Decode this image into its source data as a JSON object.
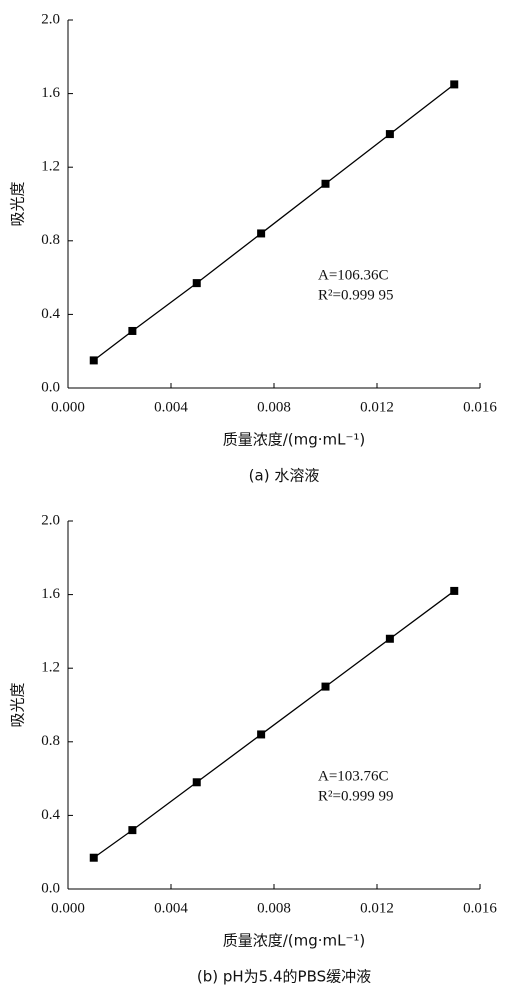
{
  "chart_data": [
    {
      "type": "scatter",
      "caption": "(a) 水溶液",
      "x_label": "质量浓度/(mg·mL⁻¹)",
      "y_label": "吸光度",
      "annotations": [
        "A=106.36C",
        "R²=0.999 95"
      ],
      "x": [
        0.001,
        0.0025,
        0.005,
        0.0075,
        0.01,
        0.0125,
        0.015
      ],
      "series": [
        {
          "color": "#000000",
          "values": [
            0.15,
            0.31,
            0.57,
            0.84,
            1.11,
            1.38,
            1.65
          ]
        }
      ],
      "xlim": [
        0,
        0.016
      ],
      "ylim": [
        0,
        2.0
      ],
      "xticks": [
        {
          "value": 0,
          "label": "0.000"
        },
        {
          "value": 0.004,
          "label": "0.004"
        },
        {
          "value": 0.008,
          "label": "0.008"
        },
        {
          "value": 0.012,
          "label": "0.012"
        },
        {
          "value": 0.016,
          "label": "0.016"
        }
      ],
      "yticks": [
        {
          "value": 0,
          "label": "0.0"
        },
        {
          "value": 0.4,
          "label": "0.4"
        },
        {
          "value": 0.8,
          "label": "0.8"
        },
        {
          "value": 1.2,
          "label": "1.2"
        },
        {
          "value": 1.6,
          "label": "1.6"
        },
        {
          "value": 2.0,
          "label": "2.0"
        }
      ]
    },
    {
      "type": "scatter",
      "caption": "(b) pH为5.4的PBS缓冲液",
      "x_label": "质量浓度/(mg·mL⁻¹)",
      "y_label": "吸光度",
      "annotations": [
        "A=103.76C",
        "R²=0.999 99"
      ],
      "x": [
        0.001,
        0.0025,
        0.005,
        0.0075,
        0.01,
        0.0125,
        0.015
      ],
      "series": [
        {
          "color": "#000000",
          "values": [
            0.17,
            0.32,
            0.58,
            0.84,
            1.1,
            1.36,
            1.62
          ]
        }
      ],
      "xlim": [
        0,
        0.016
      ],
      "ylim": [
        0,
        2.0
      ],
      "xticks": [
        {
          "value": 0,
          "label": "0.000"
        },
        {
          "value": 0.004,
          "label": "0.004"
        },
        {
          "value": 0.008,
          "label": "0.008"
        },
        {
          "value": 0.012,
          "label": "0.012"
        },
        {
          "value": 0.016,
          "label": "0.016"
        }
      ],
      "yticks": [
        {
          "value": 0,
          "label": "0.0"
        },
        {
          "value": 0.4,
          "label": "0.4"
        },
        {
          "value": 0.8,
          "label": "0.8"
        },
        {
          "value": 1.2,
          "label": "1.2"
        },
        {
          "value": 1.6,
          "label": "1.6"
        },
        {
          "value": 2.0,
          "label": "2.0"
        }
      ]
    }
  ]
}
